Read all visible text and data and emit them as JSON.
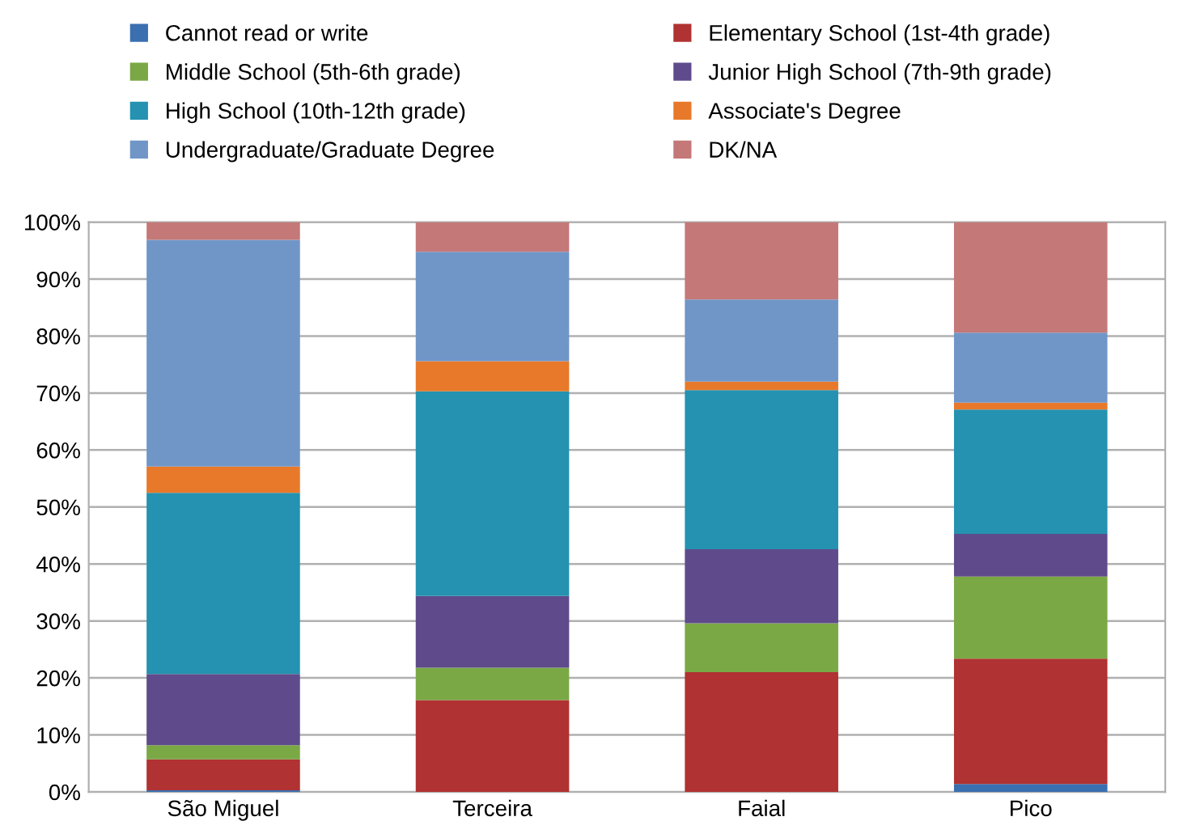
{
  "chart_data": {
    "type": "bar",
    "stacked": true,
    "categories": [
      "São Miguel",
      "Terceira",
      "Faial",
      "Pico"
    ],
    "series": [
      {
        "name": "Cannot read or write",
        "color": "#3a6fb0",
        "values": [
          0.3,
          0,
          0,
          1.4
        ]
      },
      {
        "name": "Elementary School (1st-4th grade)",
        "color": "#b03232",
        "values": [
          5.4,
          16.1,
          21.0,
          22.0
        ]
      },
      {
        "name": "Middle School (5th-6th grade)",
        "color": "#7aa845",
        "values": [
          2.5,
          5.7,
          8.6,
          14.4
        ]
      },
      {
        "name": "Junior High School (7th-9th grade)",
        "color": "#5f4b8b",
        "values": [
          12.5,
          12.6,
          13.0,
          7.5
        ]
      },
      {
        "name": "High School (10th-12th grade)",
        "color": "#2492b0",
        "values": [
          31.8,
          35.9,
          27.9,
          21.8
        ]
      },
      {
        "name": "Associate's Degree",
        "color": "#e8792a",
        "values": [
          4.6,
          5.3,
          1.5,
          1.2
        ]
      },
      {
        "name": "Undergraduate/Graduate Degree",
        "color": "#7096c8",
        "values": [
          39.8,
          19.2,
          14.4,
          12.3
        ]
      },
      {
        "name": "DK/NA",
        "color": "#c47878",
        "values": [
          3.1,
          5.2,
          13.6,
          19.4
        ]
      }
    ],
    "ylim": [
      0,
      100
    ],
    "yticks": [
      {
        "value": 0,
        "label": "0%"
      },
      {
        "value": 10,
        "label": "10%"
      },
      {
        "value": 20,
        "label": "20%"
      },
      {
        "value": 30,
        "label": "30%"
      },
      {
        "value": 40,
        "label": "40%"
      },
      {
        "value": 50,
        "label": "50%"
      },
      {
        "value": 60,
        "label": "60%"
      },
      {
        "value": 70,
        "label": "70%"
      },
      {
        "value": 80,
        "label": "80%"
      },
      {
        "value": 90,
        "label": "90%"
      },
      {
        "value": 100,
        "label": "100%"
      }
    ],
    "grid": "y",
    "legend": "top"
  }
}
